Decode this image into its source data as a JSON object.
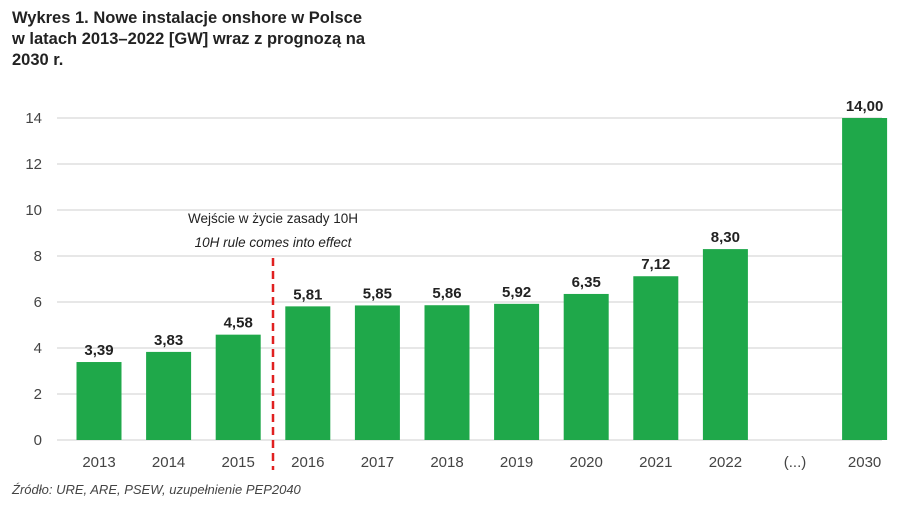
{
  "title": "Wykres 1. Nowe instalacje onshore w Polsce\nw latach 2013–2022 [GW] wraz z prognozą na\n2030 r.",
  "source": "Źródło: URE, ARE, PSEW, uzupełnienie PEP2040",
  "annotation": {
    "line1": "Wejście w życie zasady 10H",
    "line2": "10H rule comes into effect"
  },
  "colors": {
    "bar": "#1fa84a",
    "marker": "#e02020",
    "grid": "#cfcfcf"
  },
  "chart_data": {
    "type": "bar",
    "categories": [
      "2013",
      "2014",
      "2015",
      "2016",
      "2017",
      "2018",
      "2019",
      "2020",
      "2021",
      "2022",
      "(...)",
      "2030"
    ],
    "values": [
      3.39,
      3.83,
      4.58,
      5.81,
      5.85,
      5.86,
      5.92,
      6.35,
      7.12,
      8.3,
      null,
      14.0
    ],
    "labels": [
      "3,39",
      "3,83",
      "4,58",
      "5,81",
      "5,85",
      "5,86",
      "5,92",
      "6,35",
      "7,12",
      "8,30",
      "",
      "14,00"
    ],
    "yticks": [
      "0",
      "2",
      "4",
      "6",
      "8",
      "10",
      "12",
      "14"
    ],
    "ylim": [
      0,
      14
    ],
    "grid": true,
    "xlabel": "",
    "ylabel": ""
  }
}
